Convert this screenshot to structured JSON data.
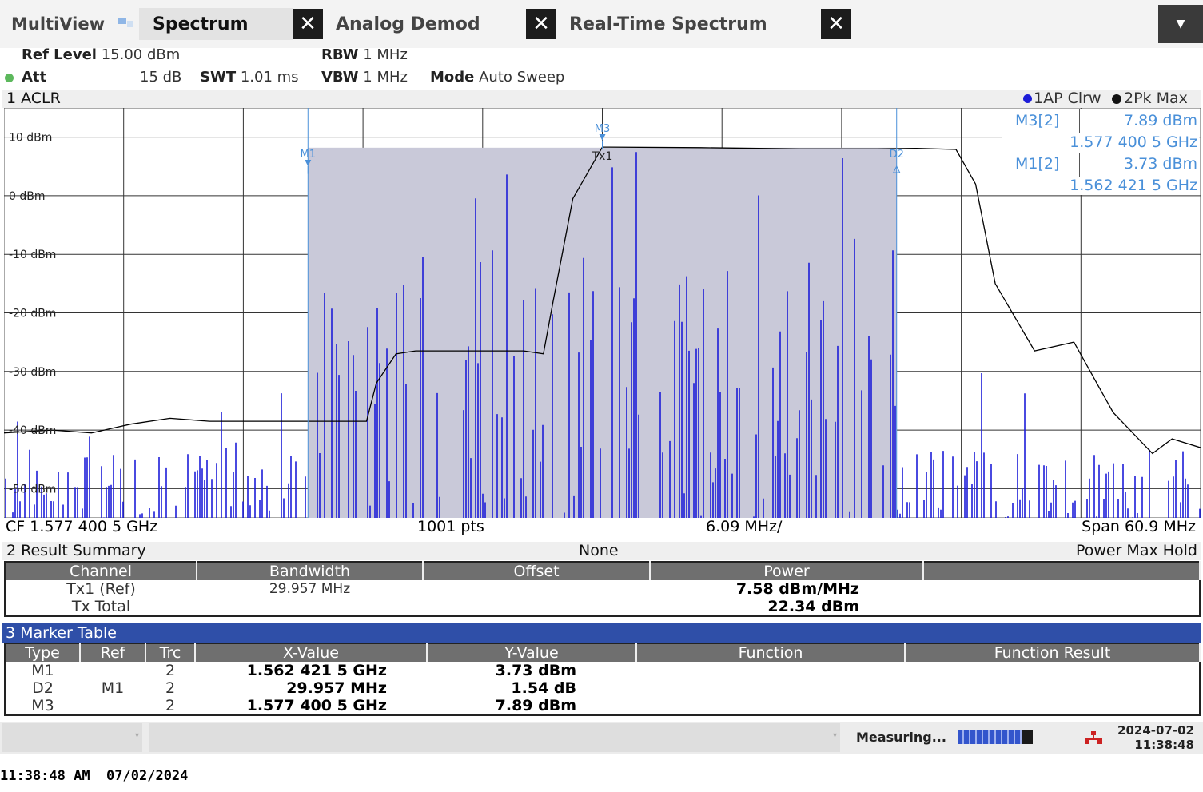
{
  "tabs": {
    "multiview": "MultiView",
    "items": [
      {
        "label": "Spectrum"
      },
      {
        "label": "Analog Demod"
      },
      {
        "label": "Real-Time Spectrum"
      }
    ],
    "close_glyph": "✕"
  },
  "settings": {
    "ref_level_label": "Ref Level",
    "ref_level_value": "15.00 dBm",
    "att_label": "Att",
    "att_value": "15 dB",
    "swt_label": "SWT",
    "swt_value": "1.01 ms",
    "rbw_label": "RBW",
    "rbw_value": "1 MHz",
    "vbw_label": "VBW",
    "vbw_value": "1 MHz",
    "mode_label": "Mode",
    "mode_value": "Auto Sweep"
  },
  "window1": {
    "title": "1 ACLR",
    "trace1_legend": "1AP Clrw",
    "trace2_legend": "2Pk Max"
  },
  "chart_data": {
    "type": "line",
    "title": "1 ACLR",
    "ylim": [
      -55,
      15
    ],
    "xlim_mhz": [
      -30.45,
      30.45
    ],
    "y_ticks": [
      "10 dBm",
      "0 dBm",
      "-10 dBm",
      "-20 dBm",
      "-30 dBm",
      "-40 dBm",
      "-50 dBm"
    ],
    "y_tick_values": [
      10,
      0,
      -10,
      -20,
      -30,
      -40,
      -50
    ],
    "grid": true,
    "series": [
      {
        "name": "2Pk Max",
        "color": "#000000",
        "x": [
          -30.45,
          -28,
          -26,
          -24,
          -22,
          -20,
          -18,
          -16,
          -14,
          -12,
          -11.5,
          -10.5,
          -9.5,
          -8,
          -6,
          -4,
          -3,
          -2.5,
          -1.5,
          0,
          5,
          10,
          14,
          16,
          18,
          19,
          20,
          22,
          24,
          26,
          28,
          29,
          30.45
        ],
        "values": [
          -40.5,
          -40,
          -40.5,
          -39,
          -38,
          -38.5,
          -38.5,
          -38.5,
          -38.5,
          -38.5,
          -32,
          -27,
          -26.5,
          -26.5,
          -26.5,
          -26.5,
          -27,
          -18,
          -0.5,
          8.3,
          8.2,
          8,
          8,
          8.1,
          7.9,
          2,
          -15,
          -26.5,
          -25,
          -37,
          -44,
          -41.5,
          -43
        ]
      }
    ],
    "channel_shading": {
      "name": "Tx1",
      "x_start_mhz": -14.98,
      "x_end_mhz": 14.98,
      "color": "#c9c9d9"
    },
    "markers": [
      {
        "name": "M1",
        "x_mhz": -14.98,
        "y_dbm": 3.73
      },
      {
        "name": "M3",
        "x_mhz": 0,
        "y_dbm": 7.89
      },
      {
        "name": "D2",
        "x_mhz": 14.98,
        "y_dbm": 5.27
      }
    ],
    "channel_label": "Tx1",
    "trace1_color": "#1d1dd8",
    "center_freq_text": "CF 1.577 400 5 GHz",
    "points_text": "1001 pts",
    "div_text": "6.09 MHz/",
    "span_text": "Span 60.9 MHz"
  },
  "marker_readout": [
    {
      "name": "M3[2]",
      "value": "7.89 dBm",
      "freq": "1.577 400 5 GHz"
    },
    {
      "name": "M1[2]",
      "value": "3.73 dBm",
      "freq": "1.562 421 5 GHz"
    }
  ],
  "result_summary": {
    "title": "2 Result Summary",
    "center_text": "None",
    "right_text": "Power Max Hold",
    "headers": [
      "Channel",
      "Bandwidth",
      "Offset",
      "Power",
      ""
    ],
    "rows": [
      {
        "channel": "Tx1 (Ref)",
        "bandwidth": "29.957 MHz",
        "offset": "",
        "power": "7.58 dBm/MHz"
      },
      {
        "channel": "Tx Total",
        "bandwidth": "",
        "offset": "",
        "power": "22.34 dBm"
      }
    ]
  },
  "marker_table": {
    "title": "3 Marker Table",
    "headers": [
      "Type",
      "Ref",
      "Trc",
      "X-Value",
      "Y-Value",
      "Function",
      "Function Result"
    ],
    "rows": [
      {
        "type": "M1",
        "ref": "",
        "trc": "2",
        "x": "1.562 421 5 GHz",
        "y": "3.73 dBm"
      },
      {
        "type": "D2",
        "ref": "M1",
        "trc": "2",
        "x": "29.957 MHz",
        "y": "1.54 dB"
      },
      {
        "type": "M3",
        "ref": "",
        "trc": "2",
        "x": "1.577 400 5 GHz",
        "y": "7.89 dBm"
      }
    ]
  },
  "status": {
    "measuring": "Measuring...",
    "date": "2024-07-02",
    "time": "11:38:48",
    "progress": 0.85
  },
  "footer_timestamp": "11:38:48 AM  07/02/2024",
  "colors": {
    "marker_blue": "#4a90d9",
    "trace1": "#1d1dd8",
    "table_header": "#6f6f6f",
    "marker_table_title_bg": "#2f4fa8"
  }
}
